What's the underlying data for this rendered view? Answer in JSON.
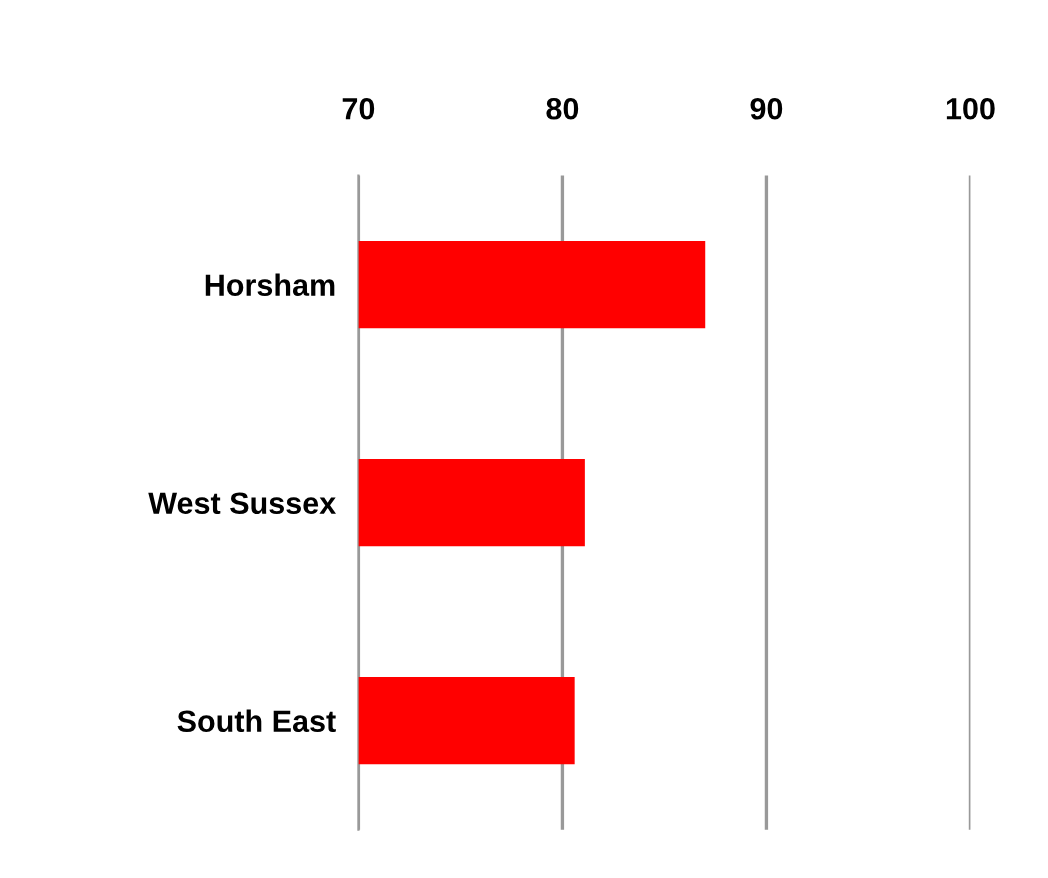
{
  "chart_data": {
    "type": "bar",
    "orientation": "horizontal",
    "categories": [
      "Horsham",
      "West Sussex",
      "South East"
    ],
    "values": [
      87,
      81.1,
      80.6
    ],
    "color": "#ff0000",
    "xlim": [
      70,
      100
    ],
    "xticks": [
      70,
      80,
      90,
      100
    ],
    "grid": "x"
  }
}
